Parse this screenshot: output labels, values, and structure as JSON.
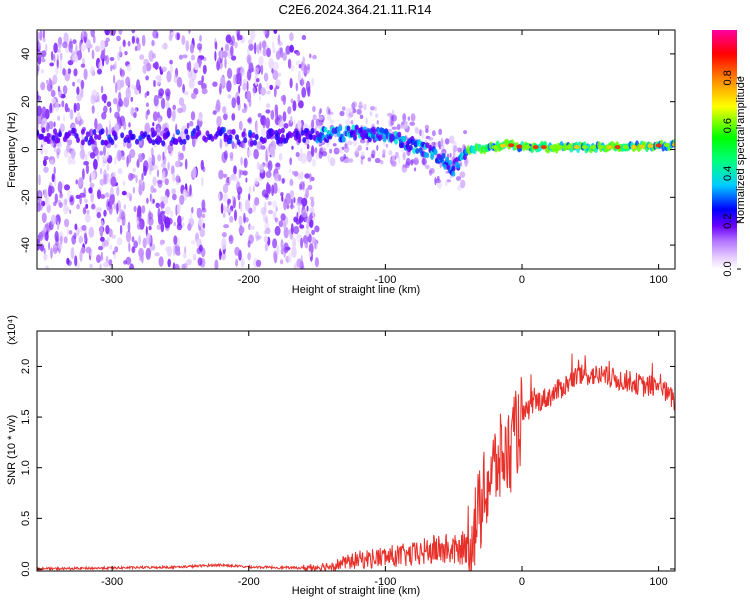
{
  "title": "C2E6.2024.364.21.11.R14",
  "chart_data": [
    {
      "type": "heatmap",
      "xlabel": "Height of straight line (km)",
      "ylabel": "Frequency (Hz)",
      "xlim": [
        -355,
        112
      ],
      "ylim": [
        -50,
        50
      ],
      "x_ticks": [
        -300,
        -200,
        -100,
        0,
        100
      ],
      "x_tick_labels": [
        "-300",
        "-200",
        "-100",
        "0",
        "100"
      ],
      "y_ticks": [
        -40,
        -20,
        0,
        20,
        40
      ],
      "y_tick_labels": [
        "-40",
        "-20",
        "0",
        "20",
        "40"
      ],
      "colorbar": {
        "label": "Normalized spectral amplitude",
        "range": [
          0,
          1
        ],
        "ticks": [
          0.0,
          0.2,
          0.4,
          0.6,
          0.8
        ],
        "tick_labels": [
          "0.0",
          "0.2",
          "0.4",
          "0.6",
          "0.8"
        ]
      },
      "ridge_frequency": {
        "x": [
          -350,
          -300,
          -250,
          -240,
          -200,
          -150,
          -120,
          -100,
          -80,
          -60,
          -50,
          -40,
          -30,
          -20,
          -10,
          0,
          20,
          50,
          80,
          110
        ],
        "y": [
          6,
          5,
          5,
          7,
          5,
          6,
          7,
          6,
          2,
          -3,
          -8,
          0,
          0,
          1,
          2,
          1,
          1,
          1,
          1,
          2
        ]
      },
      "grid": false
    },
    {
      "type": "line",
      "xlabel": "Height of straight line (km)",
      "ylabel": "SNR (10 * v/v)",
      "multiplier": "(x10⁴)",
      "xlim": [
        -355,
        112
      ],
      "ylim": [
        -0.02,
        2.35
      ],
      "x_ticks": [
        -300,
        -200,
        -100,
        0,
        100
      ],
      "x_tick_labels": [
        "-300",
        "-200",
        "-100",
        "0",
        "100"
      ],
      "y_ticks": [
        0.0,
        0.5,
        1.0,
        1.5,
        2.0
      ],
      "y_tick_labels": [
        "0.0",
        "0.5",
        "1.0",
        "1.5",
        "2.0"
      ],
      "series": [
        {
          "color": "#e8302a",
          "x": [
            -355,
            -300,
            -250,
            -222,
            -200,
            -160,
            -140,
            -120,
            -100,
            -80,
            -60,
            -45,
            -38,
            -30,
            -25,
            -20,
            -15,
            -10,
            -5,
            0,
            10,
            20,
            30,
            40,
            50,
            60,
            70,
            80,
            90,
            100,
            105,
            112
          ],
          "y": [
            0.0,
            0.01,
            0.02,
            0.04,
            0.02,
            0.01,
            0.03,
            0.09,
            0.12,
            0.14,
            0.2,
            0.18,
            0.3,
            0.6,
            0.85,
            1.0,
            1.1,
            1.15,
            1.3,
            1.5,
            1.65,
            1.7,
            1.8,
            1.9,
            1.92,
            1.9,
            1.87,
            1.85,
            1.8,
            1.82,
            1.75,
            1.65
          ]
        }
      ],
      "grid": false
    }
  ]
}
